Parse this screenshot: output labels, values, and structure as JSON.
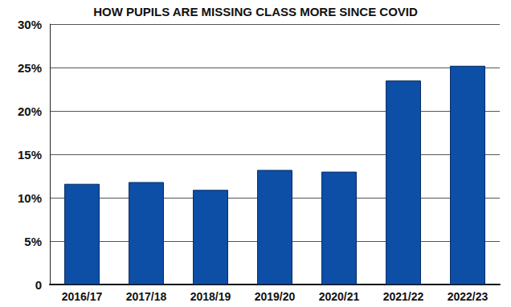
{
  "chart_data": {
    "type": "bar",
    "title": "HOW PUPILS ARE MISSING CLASS MORE SINCE COVID",
    "categories": [
      "2016/17",
      "2017/18",
      "2018/19",
      "2019/20",
      "2020/21",
      "2021/22",
      "2022/23"
    ],
    "values": [
      11.6,
      11.8,
      10.9,
      13.2,
      13.0,
      23.5,
      25.2
    ],
    "color": "#0d4ea6",
    "ylim": [
      0,
      30
    ],
    "yticks": [
      0,
      {
        "value": 5,
        "label": "5%"
      },
      {
        "value": 10,
        "label": "10%"
      },
      {
        "value": 15,
        "label": "15%"
      },
      {
        "value": 20,
        "label": "20%"
      },
      {
        "value": 25,
        "label": "25%"
      },
      {
        "value": 30,
        "label": "30%"
      }
    ],
    "grid": true
  }
}
